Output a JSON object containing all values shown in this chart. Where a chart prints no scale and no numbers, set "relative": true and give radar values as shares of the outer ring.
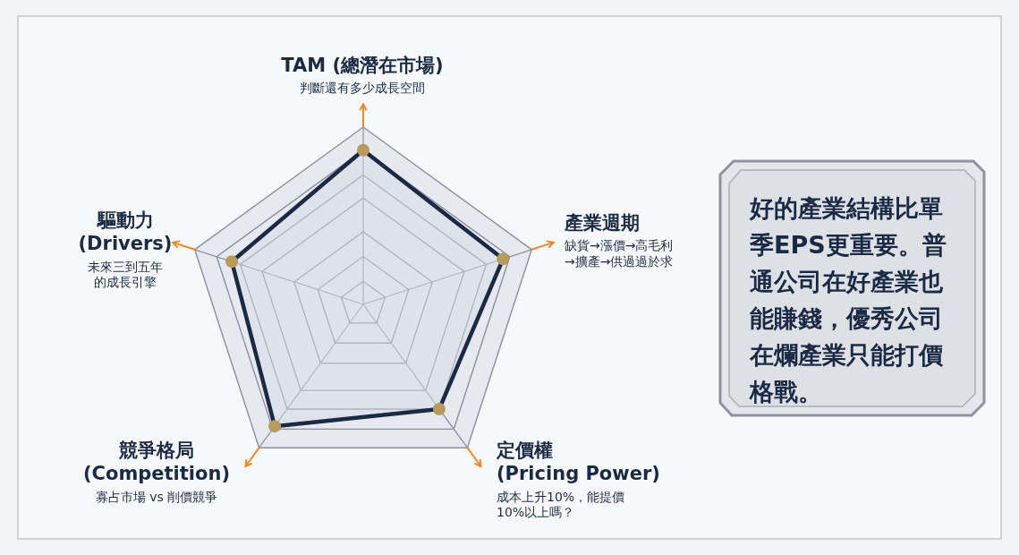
{
  "chart_data": {
    "type": "radar",
    "relative": true,
    "grid": true,
    "marker": "circle",
    "categories": [
      "TAM (總潛在市場)",
      "產業週期",
      "定價權 (Pricing Power)",
      "競爭格局 (Competition)",
      "驅動力 (Drivers)"
    ],
    "series": [
      {
        "color": "#1b2a44",
        "values": [
          0.87,
          0.83,
          0.73,
          0.85,
          0.78
        ]
      }
    ],
    "annotations": [
      "判斷還有多少成長空間",
      "缺貨→漲價→高毛利→擴產→供過過於求",
      "成本上升10%，能提價10%以上嗎？",
      "寡占市場 vs 削價競爭",
      "未來三到五年的成長引擎",
      "好的產業結構比單季EPS更重要。普通公司在好產業也能賺錢，優秀公司在爛產業只能打價格戰。"
    ]
  }
}
